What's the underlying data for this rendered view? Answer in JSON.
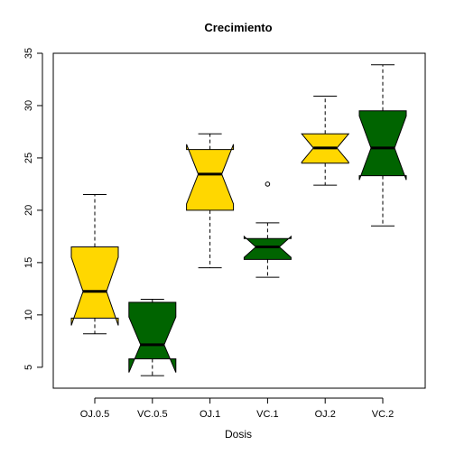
{
  "chart_data": {
    "type": "boxplot",
    "title": "Crecimiento",
    "xlabel": "Dosis",
    "ylabel": "",
    "ylim": [
      3,
      35
    ],
    "y_ticks": [
      5,
      10,
      15,
      20,
      25,
      30,
      35
    ],
    "notched": true,
    "grid": false,
    "legend": "none",
    "categories": [
      "OJ.0.5",
      "VC.0.5",
      "OJ.1",
      "VC.1",
      "OJ.2",
      "VC.2"
    ],
    "boxes": [
      {
        "category": "OJ.0.5",
        "min": 8.2,
        "q1": 9.7,
        "median": 12.25,
        "q3": 16.5,
        "max": 21.5,
        "notch": [
          9.0,
          15.5
        ],
        "outliers": [],
        "color": "#FFD700"
      },
      {
        "category": "VC.0.5",
        "min": 4.2,
        "q1": 5.8,
        "median": 7.15,
        "q3": 11.2,
        "max": 11.5,
        "notch": [
          4.5,
          9.8
        ],
        "outliers": [],
        "color": "#006400"
      },
      {
        "category": "OJ.1",
        "min": 14.5,
        "q1": 20.0,
        "median": 23.45,
        "q3": 25.8,
        "max": 27.3,
        "notch": [
          20.6,
          26.3
        ],
        "outliers": [],
        "color": "#FFD700"
      },
      {
        "category": "VC.1",
        "min": 13.6,
        "q1": 15.3,
        "median": 16.5,
        "q3": 17.3,
        "max": 18.8,
        "notch": [
          15.5,
          17.5
        ],
        "outliers": [
          22.5
        ],
        "color": "#006400"
      },
      {
        "category": "OJ.2",
        "min": 22.4,
        "q1": 24.5,
        "median": 25.95,
        "q3": 27.3,
        "max": 30.9,
        "notch": [
          24.6,
          27.3
        ],
        "outliers": [],
        "color": "#FFD700"
      },
      {
        "category": "VC.2",
        "min": 18.5,
        "q1": 23.3,
        "median": 25.95,
        "q3": 29.5,
        "max": 33.9,
        "notch": [
          22.9,
          29.0
        ],
        "outliers": [],
        "color": "#006400"
      }
    ]
  }
}
